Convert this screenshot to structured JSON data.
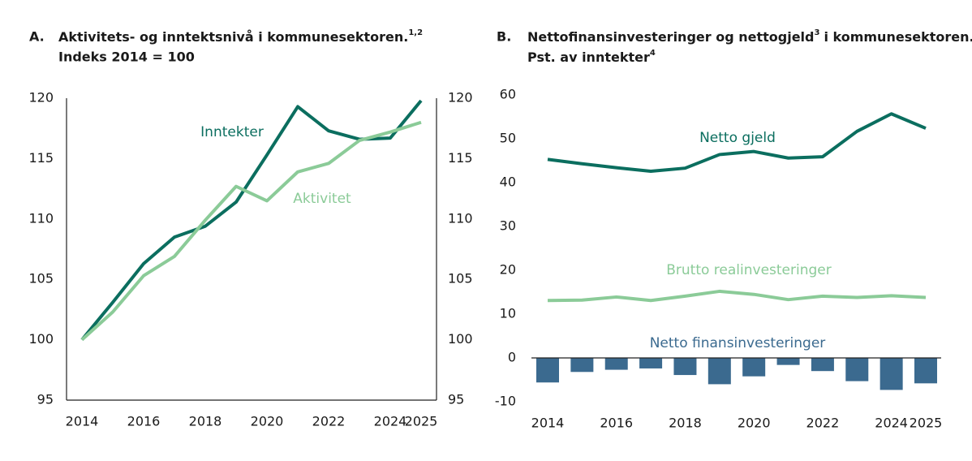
{
  "chart_data": [
    {
      "type": "line",
      "label": "A.",
      "title": "Aktivitets- og inntektsnivå i kommunesektoren.",
      "title_sup": "1,2",
      "subtitle": "Indeks 2014 = 100",
      "x": [
        2014,
        2015,
        2016,
        2017,
        2018,
        2019,
        2020,
        2021,
        2022,
        2023,
        2024,
        2025
      ],
      "xlim": [
        2014,
        2025
      ],
      "xticks": [
        2014,
        2016,
        2018,
        2020,
        2022,
        2024,
        2025
      ],
      "ylim": [
        95,
        120
      ],
      "yticks": [
        95,
        100,
        105,
        110,
        115,
        120
      ],
      "y2lim": [
        95,
        120
      ],
      "y2ticks": [
        95,
        100,
        105,
        110,
        115,
        120
      ],
      "series": [
        {
          "name": "Inntekter",
          "color": "#0b6e5f",
          "values": [
            100,
            103.1,
            106.3,
            108.5,
            109.4,
            111.4,
            115.3,
            119.3,
            117.3,
            116.6,
            116.7,
            119.8
          ]
        },
        {
          "name": "Aktivitet",
          "color": "#8bcb98",
          "values": [
            100,
            102.3,
            105.3,
            106.9,
            109.9,
            112.7,
            111.5,
            113.9,
            114.6,
            116.5,
            117.2,
            118.0
          ]
        }
      ]
    },
    {
      "type": "combo",
      "label": "B.",
      "title": "Nettofinansinvesteringer og nettogjeld",
      "title_sup": "3",
      "title_rest": "i kommunesektoren.",
      "subtitle": "Pst. av inntekter",
      "subtitle_sup": "4",
      "x": [
        2014,
        2015,
        2016,
        2017,
        2018,
        2019,
        2020,
        2021,
        2022,
        2023,
        2024,
        2025
      ],
      "xlim": [
        2014,
        2025
      ],
      "xticks": [
        2014,
        2016,
        2018,
        2020,
        2022,
        2024,
        2025
      ],
      "ylim": [
        -10,
        60
      ],
      "yticks": [
        -10,
        0,
        10,
        20,
        30,
        40,
        50,
        60
      ],
      "series": [
        {
          "name": "Netto gjeld",
          "type": "line",
          "color": "#0b6e5f",
          "values": [
            45.3,
            44.3,
            43.4,
            42.6,
            43.3,
            46.4,
            47.1,
            45.6,
            45.9,
            51.7,
            55.7,
            52.4
          ]
        },
        {
          "name": "Brutto realinvesteringer",
          "type": "line",
          "color": "#8bcb98",
          "values": [
            13.1,
            13.2,
            13.9,
            13.1,
            14.1,
            15.2,
            14.5,
            13.3,
            14.1,
            13.8,
            14.2,
            13.8
          ]
        },
        {
          "name": "Netto finansinvesteringer",
          "type": "bar",
          "color": "#3b6a8f",
          "values": [
            -5.6,
            -3.2,
            -2.7,
            -2.4,
            -3.9,
            -6.0,
            -4.2,
            -1.6,
            -3.0,
            -5.3,
            -7.3,
            -5.8
          ]
        }
      ]
    }
  ]
}
